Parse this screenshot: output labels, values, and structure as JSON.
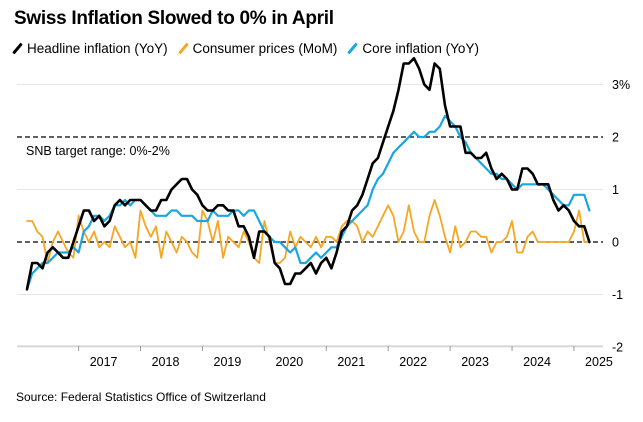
{
  "chart_data": {
    "type": "line",
    "title": "Swiss Inflation Slowed to 0% in April",
    "source": "Source: Federal Statistics Office of Switzerland",
    "ylim": [
      -2,
      3.5
    ],
    "y_ticks": [
      {
        "value": 3,
        "label": "3%"
      },
      {
        "value": 2,
        "label": "2"
      },
      {
        "value": 1,
        "label": "1"
      },
      {
        "value": 0,
        "label": "0"
      },
      {
        "value": -1,
        "label": "-1"
      },
      {
        "value": -2,
        "label": "-2"
      }
    ],
    "x_ticks": [
      "2017",
      "2018",
      "2019",
      "2020",
      "2021",
      "2022",
      "2023",
      "2024",
      "2025"
    ],
    "x_start": "2016-03",
    "target_range": {
      "low": 0,
      "high": 2,
      "label": "SNB target range: 0%-2%"
    },
    "legend_position": "top-left",
    "series": [
      {
        "name": "Headline inflation (YoY)",
        "color": "#000000",
        "values": [
          -0.9,
          -0.4,
          -0.4,
          -0.5,
          -0.2,
          -0.1,
          -0.2,
          -0.3,
          -0.3,
          0.0,
          0.3,
          0.6,
          0.6,
          0.4,
          0.5,
          0.3,
          0.4,
          0.7,
          0.8,
          0.7,
          0.8,
          0.8,
          0.8,
          0.7,
          0.6,
          0.6,
          0.8,
          0.8,
          1.0,
          1.1,
          1.2,
          1.2,
          1.0,
          0.9,
          0.7,
          0.6,
          0.6,
          0.7,
          0.7,
          0.6,
          0.6,
          0.3,
          0.3,
          0.1,
          -0.3,
          0.2,
          0.2,
          0.1,
          -0.4,
          -0.5,
          -0.8,
          -0.8,
          -0.6,
          -0.6,
          -0.5,
          -0.4,
          -0.6,
          -0.4,
          -0.3,
          -0.5,
          -0.2,
          0.2,
          0.3,
          0.6,
          0.7,
          0.9,
          1.2,
          1.5,
          1.6,
          1.9,
          2.2,
          2.5,
          2.9,
          3.4,
          3.4,
          3.5,
          3.3,
          3.0,
          2.9,
          3.4,
          3.3,
          2.6,
          2.2,
          2.2,
          2.2,
          1.7,
          1.7,
          1.6,
          1.6,
          1.7,
          1.4,
          1.2,
          1.3,
          1.2,
          1.0,
          1.0,
          1.4,
          1.4,
          1.3,
          1.1,
          1.1,
          1.1,
          0.8,
          0.6,
          0.7,
          0.6,
          0.4,
          0.3,
          0.3,
          0.0
        ],
        "note": "values are monthly, Mar 2016 to Apr 2025"
      },
      {
        "name": "Consumer prices (MoM)",
        "color": "#f5a623",
        "values": [
          0.4,
          0.4,
          0.2,
          0.1,
          -0.4,
          0.0,
          0.2,
          0.0,
          -0.2,
          -0.3,
          0.5,
          0.2,
          0.0,
          0.2,
          -0.1,
          0.0,
          -0.1,
          0.3,
          0.1,
          -0.1,
          0.0,
          -0.3,
          0.6,
          0.3,
          0.1,
          0.3,
          -0.3,
          0.2,
          0.0,
          -0.2,
          0.1,
          0.0,
          -0.2,
          -0.3,
          0.6,
          0.4,
          0.0,
          0.4,
          -0.3,
          0.1,
          0.0,
          -0.1,
          0.2,
          0.0,
          -0.3,
          -0.4,
          0.4,
          0.0,
          -0.4,
          -0.4,
          -0.3,
          0.2,
          -0.1,
          0.1,
          0.0,
          -0.1,
          0.1,
          -0.1,
          0.1,
          0.1,
          0.0,
          0.3,
          0.4,
          0.4,
          0.3,
          0.0,
          0.2,
          0.1,
          0.3,
          0.5,
          0.7,
          0.5,
          0.0,
          0.2,
          0.7,
          0.2,
          0.0,
          0.0,
          0.5,
          0.8,
          0.5,
          0.1,
          -0.2,
          0.3,
          -0.1,
          0.0,
          0.2,
          0.2,
          0.1,
          0.1,
          -0.2,
          0.0,
          0.0,
          0.1,
          0.4,
          -0.2,
          -0.2,
          0.1,
          0.2,
          0.0,
          0.0,
          0.0,
          0.0,
          0.0,
          0.0,
          0.0,
          0.2,
          0.6,
          0.0,
          0.0
        ],
        "note": "values are monthly, Mar 2016 to Apr 2025"
      },
      {
        "name": "Core inflation (YoY)",
        "color": "#1aa6e0",
        "values": [
          -0.9,
          -0.6,
          -0.5,
          -0.4,
          -0.4,
          -0.3,
          -0.2,
          -0.2,
          -0.2,
          -0.1,
          -0.2,
          0.2,
          0.3,
          0.5,
          0.5,
          0.4,
          0.5,
          0.7,
          0.7,
          0.8,
          0.7,
          0.8,
          0.8,
          0.7,
          0.6,
          0.5,
          0.5,
          0.5,
          0.6,
          0.6,
          0.5,
          0.5,
          0.5,
          0.4,
          0.4,
          0.4,
          0.6,
          0.5,
          0.5,
          0.5,
          0.6,
          0.6,
          0.5,
          0.6,
          0.6,
          0.4,
          0.2,
          0.1,
          0.0,
          0.0,
          -0.1,
          -0.2,
          -0.1,
          -0.4,
          -0.4,
          -0.3,
          -0.2,
          -0.3,
          -0.2,
          -0.1,
          -0.1,
          0.1,
          0.3,
          0.4,
          0.5,
          0.6,
          0.7,
          1.0,
          1.2,
          1.3,
          1.5,
          1.7,
          1.8,
          1.9,
          2.0,
          2.1,
          2.0,
          2.0,
          2.1,
          2.1,
          2.2,
          2.4,
          2.3,
          2.2,
          2.0,
          1.9,
          1.7,
          1.6,
          1.5,
          1.4,
          1.3,
          1.3,
          1.2,
          1.2,
          1.1,
          1.0,
          1.1,
          1.1,
          1.1,
          1.1,
          1.1,
          1.0,
          0.9,
          0.8,
          0.7,
          0.7,
          0.9,
          0.9,
          0.9,
          0.6
        ],
        "note": "values are monthly, Mar 2016 to Apr 2025"
      }
    ]
  }
}
